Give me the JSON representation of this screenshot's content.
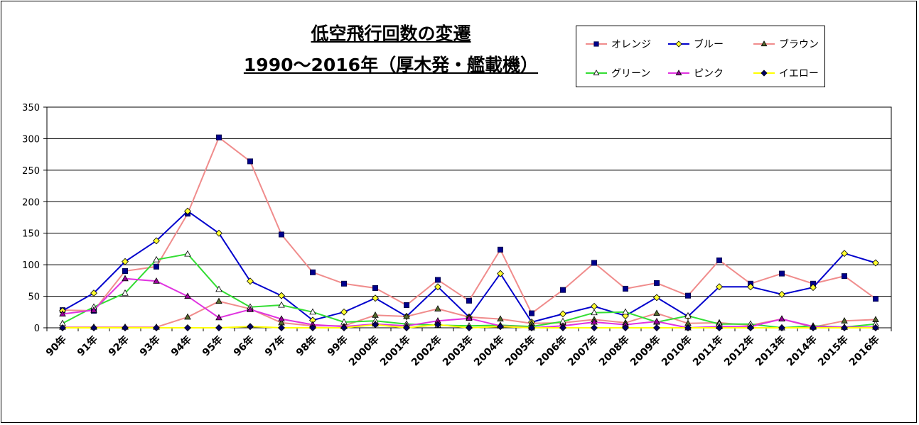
{
  "title": {
    "line1": "低空飛行回数の変遷",
    "line2": "1990～2016年（厚木発・艦載機）"
  },
  "chart_data": {
    "type": "line",
    "x": [
      "90年",
      "91年",
      "92年",
      "93年",
      "94年",
      "95年",
      "96年",
      "97年",
      "98年",
      "99年",
      "2000年",
      "2001年",
      "2002年",
      "2003年",
      "2004年",
      "2005年",
      "2006年",
      "2007年",
      "2008年",
      "2009年",
      "2010年",
      "2011年",
      "2012年",
      "2013年",
      "2014年",
      "2015年",
      "2016年"
    ],
    "ylim": [
      0,
      350
    ],
    "yticks": [
      0,
      50,
      100,
      150,
      200,
      250,
      300,
      350
    ],
    "grid": true,
    "legend_position": "top-right",
    "series": [
      {
        "name": "オレンジ",
        "line_color": "#F08C8C",
        "marker_color": "#00008C",
        "marker": "square",
        "values": [
          28,
          27,
          90,
          97,
          181,
          302,
          264,
          148,
          88,
          70,
          63,
          36,
          76,
          43,
          124,
          23,
          60,
          103,
          62,
          71,
          51,
          107,
          70,
          86,
          70,
          82,
          46
        ]
      },
      {
        "name": "ブルー",
        "line_color": "#0000CC",
        "marker_color": "#FFFF33",
        "marker": "diamond",
        "values": [
          27,
          55,
          105,
          138,
          185,
          150,
          74,
          51,
          12,
          25,
          47,
          18,
          65,
          17,
          86,
          9,
          22,
          34,
          19,
          48,
          18,
          65,
          65,
          53,
          64,
          118,
          103
        ]
      },
      {
        "name": "ブラウン",
        "line_color": "#F08C8C",
        "marker_color": "#556B2F",
        "marker": "triangle",
        "values": [
          1,
          1,
          1,
          1,
          17,
          42,
          30,
          8,
          3,
          3,
          20,
          18,
          30,
          17,
          14,
          7,
          8,
          13,
          8,
          23,
          7,
          8,
          4,
          14,
          1,
          11,
          13
        ]
      },
      {
        "name": "グリーン",
        "line_color": "#33DD33",
        "marker_color": "#ffffff",
        "marker": "triangle",
        "values": [
          7,
          33,
          55,
          108,
          117,
          61,
          33,
          36,
          25,
          9,
          11,
          6,
          4,
          3,
          4,
          2,
          10,
          24,
          25,
          9,
          19,
          6,
          6,
          0,
          3,
          1,
          6
        ]
      },
      {
        "name": "ピンク",
        "line_color": "#E033E0",
        "marker_color": "#990099",
        "marker": "triangle",
        "values": [
          22,
          28,
          78,
          74,
          50,
          16,
          29,
          14,
          5,
          2,
          6,
          3,
          11,
          15,
          3,
          0,
          3,
          9,
          5,
          10,
          0,
          2,
          2,
          14,
          2,
          1,
          1
        ]
      },
      {
        "name": "イエロー",
        "line_color": "#FFFF00",
        "marker_color": "#000066",
        "marker": "diamond",
        "values": [
          0,
          0,
          0,
          0,
          0,
          0,
          2,
          0,
          0,
          0,
          5,
          0,
          5,
          0,
          2,
          0,
          0,
          0,
          0,
          0,
          0,
          0,
          0,
          0,
          0,
          0,
          0
        ]
      }
    ]
  }
}
